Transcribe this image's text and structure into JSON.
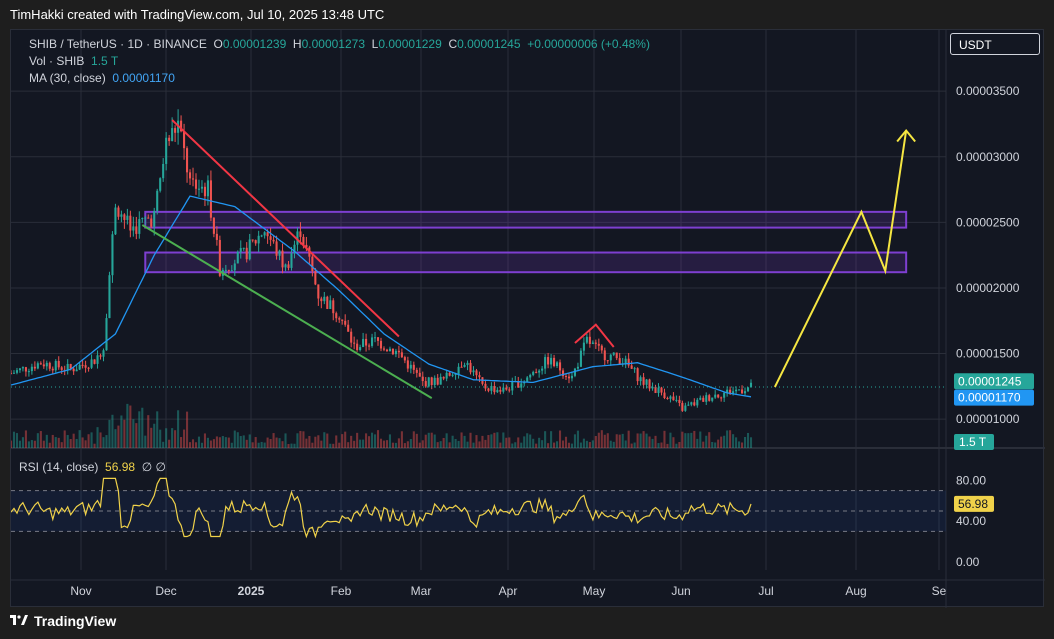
{
  "caption": "TimHakki created with TradingView.com, Jul 10, 2025 13:48 UTC",
  "brand": "TradingView",
  "currency_button": "USDT",
  "legend": {
    "symbol": "SHIB / TetherUS · 1D · BINANCE",
    "o_label": "O",
    "o_value": "0.00001239",
    "h_label": "H",
    "h_value": "0.00001273",
    "l_label": "L",
    "l_value": "0.00001229",
    "c_label": "C",
    "c_value": "0.00001245",
    "change": "+0.00000006 (+0.48%)",
    "vol_label": "Vol · SHIB",
    "vol_value": "1.5 T",
    "ma_label": "MA (30, close)",
    "ma_value": "0.00001170",
    "rsi_label": "RSI (14, close)",
    "rsi_value": "56.98",
    "rsi_extra": "∅ ∅"
  },
  "colors": {
    "up": "#26a69a",
    "down": "#ef5350",
    "ma": "#2196f3",
    "rsi": "#f0d24a",
    "zone": "#7e3fd1",
    "down_trend": "#f23645",
    "support": "#4caf50",
    "projection": "#f5e642"
  },
  "chart_data": [
    {
      "type": "candlestick",
      "title": "SHIB / TetherUS · 1D · BINANCE",
      "x_ticks": [
        "Nov",
        "Dec",
        "2025",
        "Feb",
        "Mar",
        "Apr",
        "May",
        "Jun",
        "Jul",
        "Aug",
        "Se"
      ],
      "y_ticks": [
        "0.00003500",
        "0.00003000",
        "0.00002500",
        "0.00002000",
        "0.00001500",
        "0.00001000"
      ],
      "ylim": [
        7.8e-06,
        3.89e-05
      ],
      "last_close_label": "0.00001245",
      "ma_label_value": "0.00001170",
      "volume_label": "1.5 T",
      "close_path": [
        {
          "t": 0,
          "v": 1.35e-05
        },
        {
          "t": 10,
          "v": 1.43e-05
        },
        {
          "t": 20,
          "v": 1.38e-05
        },
        {
          "t": 28,
          "v": 1.45e-05
        },
        {
          "t": 31,
          "v": 1.55e-05
        },
        {
          "t": 35,
          "v": 2.65e-05
        },
        {
          "t": 40,
          "v": 2.45e-05
        },
        {
          "t": 48,
          "v": 2.55e-05
        },
        {
          "t": 52,
          "v": 3.1e-05
        },
        {
          "t": 56,
          "v": 3.25e-05
        },
        {
          "t": 60,
          "v": 2.8e-05
        },
        {
          "t": 66,
          "v": 2.75e-05
        },
        {
          "t": 70,
          "v": 2.15e-05
        },
        {
          "t": 78,
          "v": 2.25e-05
        },
        {
          "t": 85,
          "v": 2.45e-05
        },
        {
          "t": 92,
          "v": 2.15e-05
        },
        {
          "t": 97,
          "v": 2.45e-05
        },
        {
          "t": 103,
          "v": 1.95e-05
        },
        {
          "t": 110,
          "v": 1.8e-05
        },
        {
          "t": 115,
          "v": 1.55e-05
        },
        {
          "t": 122,
          "v": 1.6e-05
        },
        {
          "t": 130,
          "v": 1.5e-05
        },
        {
          "t": 138,
          "v": 1.28e-05
        },
        {
          "t": 145,
          "v": 1.3e-05
        },
        {
          "t": 152,
          "v": 1.45e-05
        },
        {
          "t": 158,
          "v": 1.25e-05
        },
        {
          "t": 165,
          "v": 1.22e-05
        },
        {
          "t": 172,
          "v": 1.3e-05
        },
        {
          "t": 180,
          "v": 1.45e-05
        },
        {
          "t": 188,
          "v": 1.32e-05
        },
        {
          "t": 193,
          "v": 1.6e-05
        },
        {
          "t": 198,
          "v": 1.5e-05
        },
        {
          "t": 205,
          "v": 1.45e-05
        },
        {
          "t": 212,
          "v": 1.28e-05
        },
        {
          "t": 220,
          "v": 1.18e-05
        },
        {
          "t": 225,
          "v": 1.08e-05
        },
        {
          "t": 235,
          "v": 1.18e-05
        },
        {
          "t": 248,
          "v": 1.245e-05
        }
      ],
      "ma_path": [
        {
          "t": 0,
          "v": 1.26e-05
        },
        {
          "t": 20,
          "v": 1.38e-05
        },
        {
          "t": 35,
          "v": 1.65e-05
        },
        {
          "t": 48,
          "v": 2.25e-05
        },
        {
          "t": 60,
          "v": 2.7e-05
        },
        {
          "t": 75,
          "v": 2.62e-05
        },
        {
          "t": 95,
          "v": 2.28e-05
        },
        {
          "t": 110,
          "v": 1.98e-05
        },
        {
          "t": 125,
          "v": 1.65e-05
        },
        {
          "t": 140,
          "v": 1.42e-05
        },
        {
          "t": 155,
          "v": 1.3e-05
        },
        {
          "t": 175,
          "v": 1.28e-05
        },
        {
          "t": 195,
          "v": 1.4e-05
        },
        {
          "t": 210,
          "v": 1.43e-05
        },
        {
          "t": 225,
          "v": 1.32e-05
        },
        {
          "t": 240,
          "v": 1.2e-05
        },
        {
          "t": 248,
          "v": 1.17e-05
        }
      ],
      "zones": [
        {
          "from": 2.46e-05,
          "to": 2.58e-05
        },
        {
          "from": 2.12e-05,
          "to": 2.27e-05
        }
      ],
      "projection": [
        {
          "t": 256,
          "v": 1.245e-05
        },
        {
          "t": 285,
          "v": 2.58e-05
        },
        {
          "t": 293,
          "v": 2.13e-05
        },
        {
          "t": 300,
          "v": 3.2e-05
        }
      ]
    },
    {
      "type": "line",
      "title": "RSI (14, close)",
      "y_ticks": [
        "80.00",
        "40.00",
        "0.00"
      ],
      "bands": [
        70,
        50,
        30
      ],
      "ylim": [
        0,
        100
      ],
      "last_value_label": "56.98"
    }
  ]
}
